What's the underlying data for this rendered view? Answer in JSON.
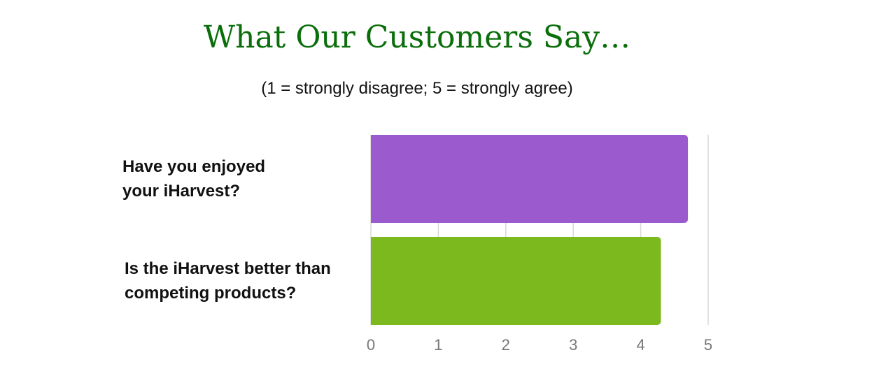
{
  "chart_data": {
    "type": "barh",
    "title": "What Our Customers Say…",
    "subtitle": "(1 = strongly disagree; 5 = strongly agree)",
    "categories": [
      "Have you enjoyed your iHarvest?",
      "Is the iHarvest better than competing products?"
    ],
    "values": [
      4.7,
      4.3
    ],
    "colors": [
      "#9b5bcf",
      "#7cb91f"
    ],
    "xlim": [
      0,
      5
    ],
    "xticks": [
      0,
      1,
      2,
      3,
      4,
      5
    ],
    "grid": true
  }
}
